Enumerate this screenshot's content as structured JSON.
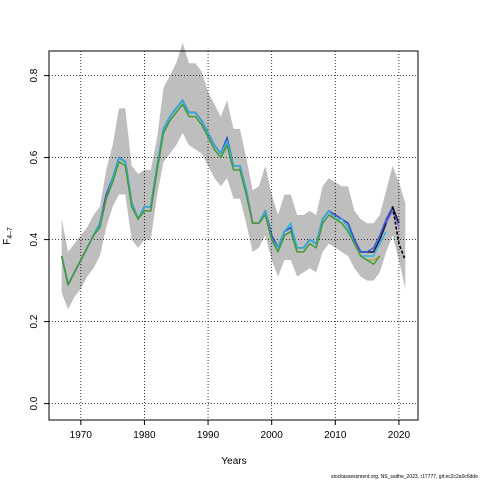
{
  "chart_data": {
    "type": "line",
    "xlabel": "Years",
    "ylabel": "F",
    "ylabel_sub": "4–7",
    "xlim": [
      1965,
      2023
    ],
    "ylim": [
      -0.04,
      0.86
    ],
    "x_ticks": [
      1970,
      1980,
      1990,
      2000,
      2010,
      2020
    ],
    "y_ticks": [
      0.0,
      0.2,
      0.4,
      0.6,
      0.8
    ],
    "y_tick_labels": [
      "0.0",
      "0.2",
      "0.4",
      "0.6",
      "0.8"
    ],
    "grid": true,
    "footer": "stockassessment.org, NS_saithe_2023, r17777, git:ec2c2a0c6dde",
    "confidence_band": {
      "x": [
        1967,
        1968,
        1969,
        1970,
        1971,
        1972,
        1973,
        1974,
        1975,
        1976,
        1977,
        1978,
        1979,
        1980,
        1981,
        1982,
        1983,
        1984,
        1985,
        1986,
        1987,
        1988,
        1989,
        1990,
        1991,
        1992,
        1993,
        1994,
        1995,
        1996,
        1997,
        1998,
        1999,
        2000,
        2001,
        2002,
        2003,
        2004,
        2005,
        2006,
        2007,
        2008,
        2009,
        2010,
        2011,
        2012,
        2013,
        2014,
        2015,
        2016,
        2017,
        2018,
        2019,
        2020,
        2021
      ],
      "upper": [
        0.45,
        0.37,
        0.39,
        0.41,
        0.43,
        0.46,
        0.48,
        0.57,
        0.63,
        0.72,
        0.72,
        0.58,
        0.56,
        0.57,
        0.57,
        0.65,
        0.77,
        0.8,
        0.83,
        0.88,
        0.83,
        0.83,
        0.81,
        0.76,
        0.73,
        0.7,
        0.74,
        0.67,
        0.67,
        0.6,
        0.52,
        0.53,
        0.58,
        0.51,
        0.46,
        0.51,
        0.51,
        0.46,
        0.46,
        0.47,
        0.46,
        0.53,
        0.55,
        0.54,
        0.53,
        0.53,
        0.47,
        0.45,
        0.44,
        0.44,
        0.46,
        0.52,
        0.58,
        0.54,
        0.49
      ],
      "lower": [
        0.27,
        0.23,
        0.26,
        0.28,
        0.31,
        0.33,
        0.36,
        0.43,
        0.48,
        0.51,
        0.51,
        0.4,
        0.38,
        0.4,
        0.4,
        0.51,
        0.59,
        0.61,
        0.63,
        0.66,
        0.63,
        0.62,
        0.61,
        0.58,
        0.55,
        0.53,
        0.55,
        0.5,
        0.5,
        0.44,
        0.37,
        0.38,
        0.41,
        0.35,
        0.31,
        0.35,
        0.35,
        0.31,
        0.32,
        0.33,
        0.32,
        0.37,
        0.39,
        0.38,
        0.37,
        0.36,
        0.33,
        0.31,
        0.3,
        0.3,
        0.32,
        0.37,
        0.41,
        0.35,
        0.28
      ]
    },
    "series": [
      {
        "color": "#1a1a4a",
        "width": 1.6,
        "x": [
          1967,
          1968,
          1969,
          1970,
          1971,
          1972,
          1973,
          1974,
          1975,
          1976,
          1977,
          1978,
          1979,
          1980,
          1981,
          1982,
          1983,
          1984,
          1985,
          1986,
          1987,
          1988,
          1989,
          1990,
          1991,
          1992,
          1993,
          1994,
          1995,
          1996,
          1997,
          1998,
          1999,
          2000,
          2001,
          2002,
          2003,
          2004,
          2005,
          2006,
          2007,
          2008,
          2009,
          2010,
          2011,
          2012,
          2013,
          2014,
          2015,
          2016,
          2017,
          2018,
          2019,
          2020
        ],
        "values": [
          0.36,
          0.29,
          0.32,
          0.35,
          0.38,
          0.41,
          0.44,
          0.51,
          0.55,
          0.6,
          0.59,
          0.49,
          0.45,
          0.48,
          0.48,
          0.58,
          0.67,
          0.7,
          0.72,
          0.74,
          0.71,
          0.71,
          0.69,
          0.66,
          0.63,
          0.61,
          0.64,
          0.58,
          0.58,
          0.52,
          0.44,
          0.44,
          0.47,
          0.41,
          0.38,
          0.42,
          0.43,
          0.38,
          0.38,
          0.4,
          0.39,
          0.45,
          0.47,
          0.46,
          0.45,
          0.44,
          0.4,
          0.37,
          0.37,
          0.37,
          0.4,
          0.44,
          0.48,
          0.44
        ]
      },
      {
        "color": "#3a57d6",
        "width": 1.4,
        "x": [
          1967,
          1968,
          1969,
          1970,
          1971,
          1972,
          1973,
          1974,
          1975,
          1976,
          1977,
          1978,
          1979,
          1980,
          1981,
          1982,
          1983,
          1984,
          1985,
          1986,
          1987,
          1988,
          1989,
          1990,
          1991,
          1992,
          1993,
          1994,
          1995,
          1996,
          1997,
          1998,
          1999,
          2000,
          2001,
          2002,
          2003,
          2004,
          2005,
          2006,
          2007,
          2008,
          2009,
          2010,
          2011,
          2012,
          2013,
          2014,
          2015,
          2016,
          2017,
          2018,
          2019
        ],
        "values": [
          0.36,
          0.29,
          0.32,
          0.35,
          0.38,
          0.41,
          0.44,
          0.51,
          0.55,
          0.6,
          0.59,
          0.49,
          0.45,
          0.48,
          0.48,
          0.58,
          0.67,
          0.7,
          0.72,
          0.74,
          0.71,
          0.71,
          0.69,
          0.66,
          0.63,
          0.61,
          0.65,
          0.58,
          0.58,
          0.52,
          0.44,
          0.44,
          0.47,
          0.41,
          0.38,
          0.42,
          0.43,
          0.38,
          0.38,
          0.4,
          0.39,
          0.45,
          0.47,
          0.46,
          0.45,
          0.44,
          0.4,
          0.37,
          0.37,
          0.38,
          0.41,
          0.45,
          0.48
        ]
      },
      {
        "color": "#29b6e0",
        "width": 1.4,
        "x": [
          1967,
          1968,
          1969,
          1970,
          1971,
          1972,
          1973,
          1974,
          1975,
          1976,
          1977,
          1978,
          1979,
          1980,
          1981,
          1982,
          1983,
          1984,
          1985,
          1986,
          1987,
          1988,
          1989,
          1990,
          1991,
          1992,
          1993,
          1994,
          1995,
          1996,
          1997,
          1998,
          1999,
          2000,
          2001,
          2002,
          2003,
          2004,
          2005,
          2006,
          2007,
          2008,
          2009,
          2010,
          2011,
          2012,
          2013,
          2014,
          2015,
          2016,
          2017,
          2018
        ],
        "values": [
          0.36,
          0.29,
          0.32,
          0.35,
          0.38,
          0.41,
          0.44,
          0.5,
          0.55,
          0.6,
          0.59,
          0.49,
          0.45,
          0.48,
          0.48,
          0.58,
          0.67,
          0.7,
          0.72,
          0.74,
          0.71,
          0.71,
          0.69,
          0.66,
          0.63,
          0.61,
          0.64,
          0.58,
          0.58,
          0.52,
          0.44,
          0.44,
          0.47,
          0.4,
          0.38,
          0.42,
          0.44,
          0.38,
          0.38,
          0.4,
          0.39,
          0.45,
          0.47,
          0.45,
          0.45,
          0.43,
          0.39,
          0.36,
          0.36,
          0.36,
          0.39,
          0.42
        ]
      },
      {
        "color": "#b5a832",
        "width": 1.4,
        "x": [
          1967,
          1968,
          1969,
          1970,
          1971,
          1972,
          1973,
          1974,
          1975,
          1976,
          1977,
          1978,
          1979,
          1980,
          1981,
          1982,
          1983,
          1984,
          1985,
          1986,
          1987,
          1988,
          1989,
          1990,
          1991,
          1992,
          1993,
          1994,
          1995,
          1996,
          1997,
          1998,
          1999,
          2000,
          2001,
          2002,
          2003,
          2004,
          2005,
          2006,
          2007,
          2008,
          2009,
          2010,
          2011,
          2012,
          2013,
          2014,
          2015,
          2016,
          2017
        ],
        "values": [
          0.36,
          0.29,
          0.32,
          0.35,
          0.38,
          0.41,
          0.43,
          0.5,
          0.54,
          0.59,
          0.58,
          0.48,
          0.45,
          0.47,
          0.47,
          0.57,
          0.66,
          0.69,
          0.71,
          0.73,
          0.7,
          0.7,
          0.68,
          0.65,
          0.62,
          0.6,
          0.63,
          0.57,
          0.57,
          0.51,
          0.44,
          0.44,
          0.46,
          0.4,
          0.37,
          0.41,
          0.42,
          0.37,
          0.37,
          0.39,
          0.38,
          0.44,
          0.46,
          0.45,
          0.44,
          0.42,
          0.39,
          0.36,
          0.35,
          0.35,
          0.36
        ]
      },
      {
        "color": "#3b9a3b",
        "width": 1.4,
        "x": [
          1967,
          1968,
          1969,
          1970,
          1971,
          1972,
          1973,
          1974,
          1975,
          1976,
          1977,
          1978,
          1979,
          1980,
          1981,
          1982,
          1983,
          1984,
          1985,
          1986,
          1987,
          1988,
          1989,
          1990,
          1991,
          1992,
          1993,
          1994,
          1995,
          1996,
          1997,
          1998,
          1999,
          2000,
          2001,
          2002,
          2003,
          2004,
          2005,
          2006,
          2007,
          2008,
          2009,
          2010,
          2011,
          2012,
          2013,
          2014,
          2015,
          2016,
          2017
        ],
        "values": [
          0.36,
          0.29,
          0.32,
          0.35,
          0.38,
          0.41,
          0.43,
          0.5,
          0.54,
          0.59,
          0.58,
          0.48,
          0.45,
          0.47,
          0.47,
          0.57,
          0.66,
          0.69,
          0.71,
          0.73,
          0.7,
          0.7,
          0.68,
          0.65,
          0.62,
          0.6,
          0.63,
          0.57,
          0.57,
          0.51,
          0.44,
          0.44,
          0.46,
          0.4,
          0.37,
          0.41,
          0.42,
          0.37,
          0.37,
          0.39,
          0.38,
          0.44,
          0.46,
          0.45,
          0.44,
          0.42,
          0.39,
          0.36,
          0.35,
          0.34,
          0.36
        ]
      },
      {
        "color": "#8a6bd6",
        "width": 1.4,
        "x": [
          2018,
          2019,
          2020
        ],
        "values": [
          0.44,
          0.47,
          0.43
        ]
      }
    ],
    "forecast": {
      "color": "#000000",
      "dashed": true,
      "x": [
        2019,
        2020,
        2021
      ],
      "values": [
        0.48,
        0.39,
        0.35
      ]
    }
  }
}
